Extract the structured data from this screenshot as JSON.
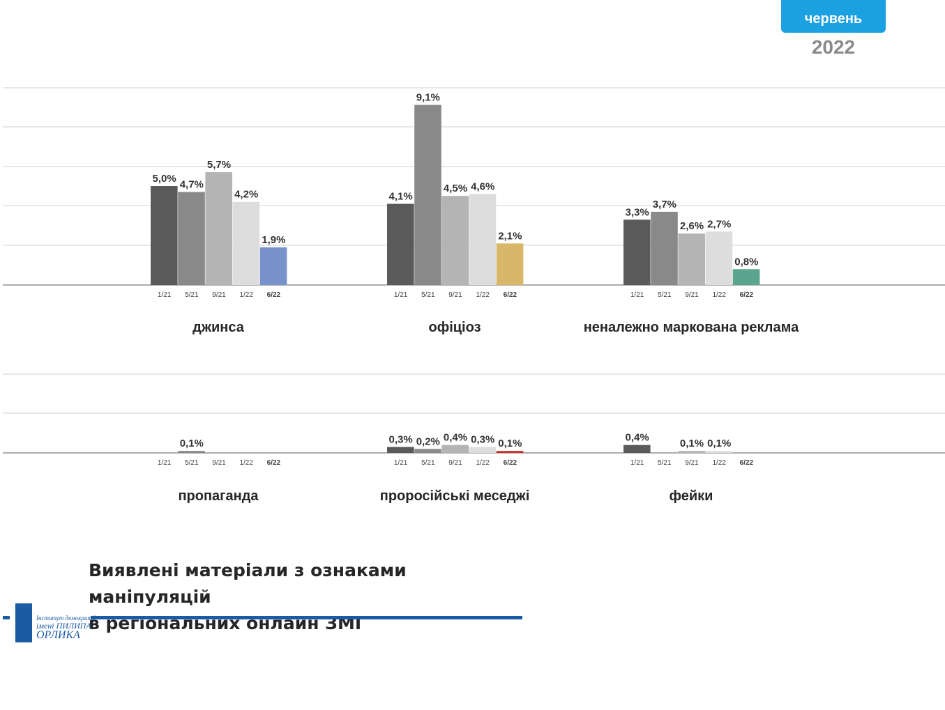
{
  "header": {
    "month": "червень",
    "year": "2022"
  },
  "title_lines": [
    "Виявлені матеріали з ознаками маніпуляцій",
    "в регіональних онлайн ЗМІ"
  ],
  "logo": {
    "line1": "Інститут демократії",
    "line2": "імені ПИЛИПА",
    "line3": "ОРЛИКА"
  },
  "colors": {
    "series": [
      "#5a5a5a",
      "#898989",
      "#b3b4b3",
      "#dcdddc"
    ],
    "highlight": {
      "джинса": "#7893cb",
      "офіціоз": "#d8b76b",
      "неналежно маркована реклама": "#5ba58e",
      "пропаганда": "#7893cb",
      "проросійські меседжі": "#c9302c",
      "фейки": "#5ba58e"
    },
    "badge": "#1ba1e2",
    "rule": "#1a5ba6"
  },
  "chart_data": [
    {
      "type": "bar",
      "panel": "top",
      "title": "джинса",
      "categories": [
        "1/21",
        "5/21",
        "9/21",
        "1/22",
        "6/22"
      ],
      "values": [
        5.0,
        4.7,
        5.7,
        4.2,
        1.9
      ],
      "labels": [
        "5,0%",
        "4,7%",
        "5,7%",
        "4,2%",
        "1,9%"
      ],
      "ylim": [
        0,
        10
      ],
      "grid": true
    },
    {
      "type": "bar",
      "panel": "top",
      "title": "офіціоз",
      "categories": [
        "1/21",
        "5/21",
        "9/21",
        "1/22",
        "6/22"
      ],
      "values": [
        4.1,
        9.1,
        4.5,
        4.6,
        2.1
      ],
      "labels": [
        "4,1%",
        "9,1%",
        "4,5%",
        "4,6%",
        "2,1%"
      ],
      "ylim": [
        0,
        10
      ],
      "grid": true
    },
    {
      "type": "bar",
      "panel": "top",
      "title": "неналежно маркована реклама",
      "categories": [
        "1/21",
        "5/21",
        "9/21",
        "1/22",
        "6/22"
      ],
      "values": [
        3.3,
        3.7,
        2.6,
        2.7,
        0.8
      ],
      "labels": [
        "3,3%",
        "3,7%",
        "2,6%",
        "2,7%",
        "0,8%"
      ],
      "ylim": [
        0,
        10
      ],
      "grid": true
    },
    {
      "type": "bar",
      "panel": "bottom",
      "title": "пропаганда",
      "categories": [
        "1/21",
        "5/21",
        "9/21",
        "1/22",
        "6/22"
      ],
      "values": [
        0,
        0.1,
        0,
        0,
        0
      ],
      "labels": [
        "",
        "0,1%",
        "",
        "",
        ""
      ],
      "ylim": [
        0,
        10
      ],
      "grid": true
    },
    {
      "type": "bar",
      "panel": "bottom",
      "title": "проросійські меседжі",
      "categories": [
        "1/21",
        "5/21",
        "9/21",
        "1/22",
        "6/22"
      ],
      "values": [
        0.3,
        0.2,
        0.4,
        0.3,
        0.1
      ],
      "labels": [
        "0,3%",
        "0,2%",
        "0,4%",
        "0,3%",
        "0,1%"
      ],
      "ylim": [
        0,
        10
      ],
      "grid": true
    },
    {
      "type": "bar",
      "panel": "bottom",
      "title": "фейки",
      "categories": [
        "1/21",
        "5/21",
        "9/21",
        "1/22",
        "6/22"
      ],
      "values": [
        0.4,
        0,
        0.1,
        0.1,
        0
      ],
      "labels": [
        "0,4%",
        "",
        "0,1%",
        "0,1%",
        ""
      ],
      "ylim": [
        0,
        10
      ],
      "grid": true
    }
  ]
}
